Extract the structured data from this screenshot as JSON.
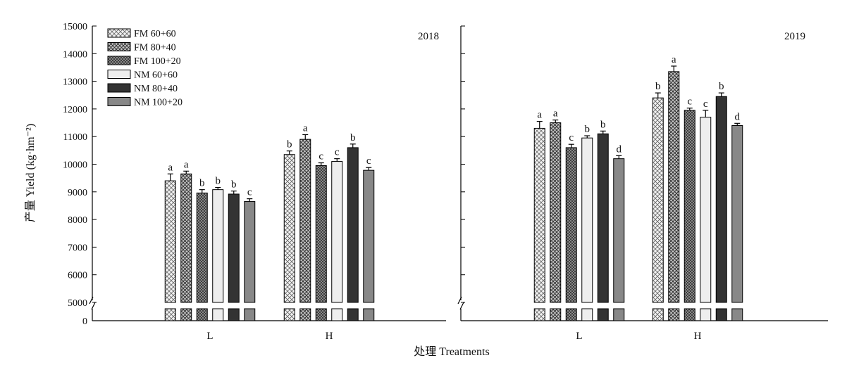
{
  "chart_data": {
    "type": "bar",
    "y_axis": {
      "label": "产量 Yield (kg·hm⁻²)",
      "ticks": [
        0,
        5000,
        6000,
        7000,
        8000,
        9000,
        10000,
        11000,
        12000,
        13000,
        14000,
        15000
      ],
      "broken_axis": true,
      "lower_segment": [
        0,
        0
      ],
      "upper_segment": [
        5000,
        15000
      ]
    },
    "x_axis": {
      "label": "处理 Treatments"
    },
    "legend": {
      "placement": "top-left",
      "entries": [
        "FM 60+60",
        "FM 80+40",
        "FM 100+20",
        "NM 60+60",
        "NM 80+40",
        "NM 100+20"
      ]
    },
    "series_colors": [
      "#d9d9d9",
      "#a6a6a6",
      "#555555",
      "#eeeeee",
      "#333333",
      "#888888"
    ],
    "series_patterns": [
      "crosshatch-light",
      "crosshatch-medium",
      "crosshatch-dark",
      "solid",
      "solid",
      "solid"
    ],
    "panels": [
      {
        "year": "2018",
        "categories": [
          "L",
          "H"
        ],
        "series": [
          {
            "name": "FM 60+60",
            "values": [
              9400,
              10350
            ],
            "errors": [
              250,
              130
            ],
            "letters": [
              "a",
              "b"
            ]
          },
          {
            "name": "FM 80+40",
            "values": [
              9650,
              10900
            ],
            "errors": [
              100,
              170
            ],
            "letters": [
              "a",
              "a"
            ]
          },
          {
            "name": "FM 100+20",
            "values": [
              8960,
              9950
            ],
            "errors": [
              120,
              100
            ],
            "letters": [
              "b",
              "c"
            ]
          },
          {
            "name": "NM 60+60",
            "values": [
              9080,
              10100
            ],
            "errors": [
              80,
              100
            ],
            "letters": [
              "b",
              "c"
            ]
          },
          {
            "name": "NM 80+40",
            "values": [
              8920,
              10600
            ],
            "errors": [
              110,
              130
            ],
            "letters": [
              "b",
              "b"
            ]
          },
          {
            "name": "NM 100+20",
            "values": [
              8650,
              9780
            ],
            "errors": [
              100,
              100
            ],
            "letters": [
              "c",
              "c"
            ]
          }
        ]
      },
      {
        "year": "2019",
        "categories": [
          "L",
          "H"
        ],
        "series": [
          {
            "name": "FM 60+60",
            "values": [
              11300,
              12400
            ],
            "errors": [
              250,
              180
            ],
            "letters": [
              "a",
              "b"
            ]
          },
          {
            "name": "FM 80+40",
            "values": [
              11500,
              13350
            ],
            "errors": [
              100,
              200
            ],
            "letters": [
              "a",
              "a"
            ]
          },
          {
            "name": "FM 100+20",
            "values": [
              10600,
              11950
            ],
            "errors": [
              120,
              80
            ],
            "letters": [
              "c",
              "c"
            ]
          },
          {
            "name": "NM 60+60",
            "values": [
              10950,
              11700
            ],
            "errors": [
              80,
              250
            ],
            "letters": [
              "b",
              "c"
            ]
          },
          {
            "name": "NM 80+40",
            "values": [
              11100,
              12450
            ],
            "errors": [
              100,
              130
            ],
            "letters": [
              "b",
              "b"
            ]
          },
          {
            "name": "NM 100+20",
            "values": [
              10200,
              11400
            ],
            "errors": [
              110,
              80
            ],
            "letters": [
              "d",
              "d"
            ]
          }
        ]
      }
    ]
  }
}
